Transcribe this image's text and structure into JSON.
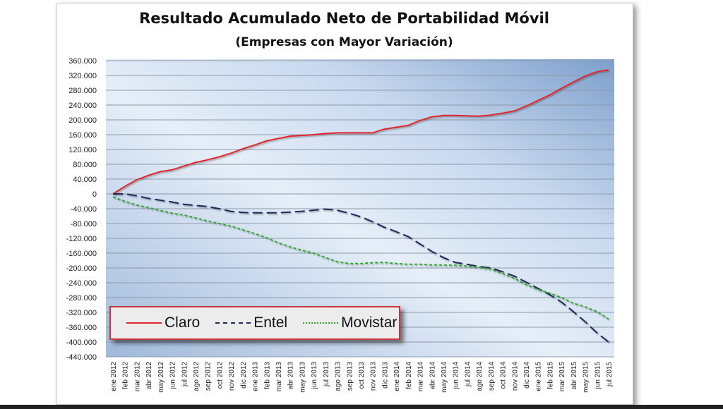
{
  "chart_data": {
    "type": "line",
    "title": "Resultado Acumulado Neto de Portabilidad Móvil",
    "subtitle": "(Empresas con Mayor Variación)",
    "xlabel": "",
    "ylabel": "",
    "ylim": [
      -440000,
      360000
    ],
    "ytick_step": 40000,
    "yticks": [
      "360.000",
      "320.000",
      "280.000",
      "240.000",
      "200.000",
      "160.000",
      "120.000",
      "80.000",
      "40.000",
      "0",
      "-40.000",
      "-80.000",
      "-120.000",
      "-160.000",
      "-200.000",
      "-240.000",
      "-280.000",
      "-320.000",
      "-360.000",
      "-400.000",
      "-440.000"
    ],
    "grid": true,
    "legend_placement": "bottom-left",
    "categories": [
      "ene 2012",
      "feb 2012",
      "mar 2012",
      "abr 2012",
      "may 2012",
      "jun 2012",
      "jul 2012",
      "ago 2012",
      "sep 2012",
      "oct 2012",
      "nov 2012",
      "dic 2012",
      "ene 2013",
      "feb 2013",
      "mar 2013",
      "abr 2013",
      "may 2013",
      "jun 2013",
      "jul 2013",
      "ago 2013",
      "sep 2013",
      "oct 2013",
      "nov 2013",
      "dic 2013",
      "ene 2014",
      "feb 2014",
      "mar 2014",
      "abr 2014",
      "may 2014",
      "jun 2014",
      "jul 2014",
      "ago 2014",
      "sep 2014",
      "oct 2014",
      "nov 2014",
      "dic 2014",
      "ene 2015",
      "feb 2015",
      "mar 2015",
      "abr 2015",
      "may 2015",
      "jun 2015",
      "jul 2015"
    ],
    "series": [
      {
        "name": "Claro",
        "color": "#e0262b",
        "dash": "solid",
        "values": [
          0,
          20000,
          38000,
          50000,
          60000,
          65000,
          75000,
          85000,
          92000,
          100000,
          110000,
          122000,
          132000,
          143000,
          150000,
          156000,
          158000,
          160000,
          163000,
          165000,
          165000,
          165000,
          165000,
          175000,
          180000,
          185000,
          198000,
          208000,
          212000,
          212000,
          211000,
          210000,
          213000,
          218000,
          224000,
          237000,
          252000,
          267000,
          285000,
          302000,
          318000,
          330000,
          335000
        ]
      },
      {
        "name": "Entel",
        "color": "#1f2a5a",
        "dash": "dashed",
        "values": [
          0,
          0,
          -5000,
          -12000,
          -17000,
          -22000,
          -28000,
          -31000,
          -34000,
          -40000,
          -47000,
          -50000,
          -51000,
          -51000,
          -51000,
          -49000,
          -47000,
          -44000,
          -41000,
          -44000,
          -52000,
          -62000,
          -75000,
          -90000,
          -102000,
          -115000,
          -135000,
          -155000,
          -172000,
          -185000,
          -190000,
          -196000,
          -200000,
          -210000,
          -222000,
          -238000,
          -255000,
          -272000,
          -292000,
          -318000,
          -345000,
          -375000,
          -400000
        ]
      },
      {
        "name": "Movistar",
        "color": "#2ea82e",
        "dash": "dotted",
        "values": [
          -8000,
          -20000,
          -30000,
          -37000,
          -45000,
          -52000,
          -57000,
          -65000,
          -73000,
          -80000,
          -87000,
          -97000,
          -107000,
          -118000,
          -132000,
          -143000,
          -152000,
          -160000,
          -172000,
          -183000,
          -188000,
          -188000,
          -186000,
          -185000,
          -188000,
          -190000,
          -190000,
          -192000,
          -192000,
          -193000,
          -195000,
          -198000,
          -203000,
          -215000,
          -228000,
          -245000,
          -258000,
          -268000,
          -280000,
          -295000,
          -305000,
          -318000,
          -338000
        ]
      }
    ]
  }
}
